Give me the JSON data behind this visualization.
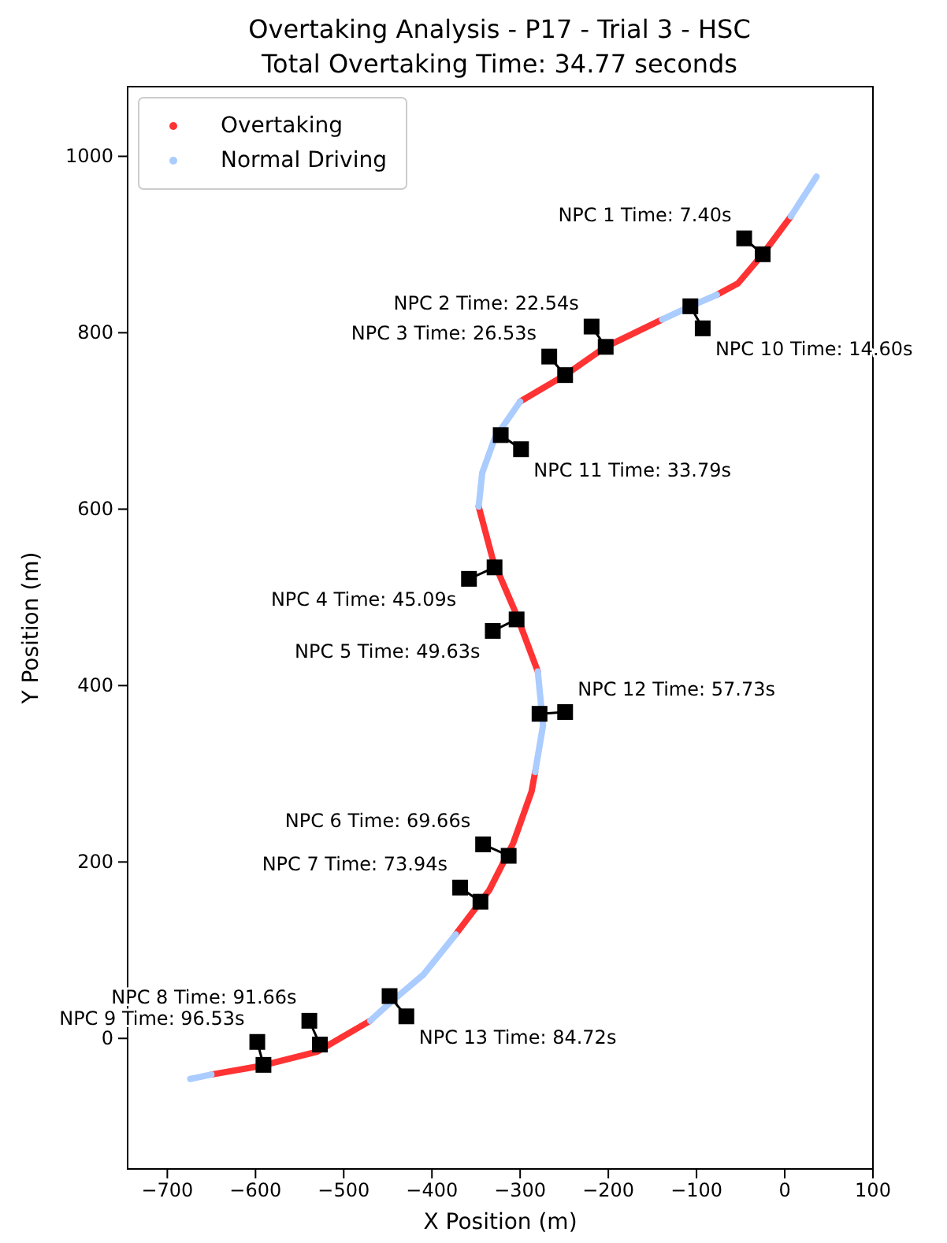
{
  "chart_data": {
    "type": "line",
    "title": "Overtaking Analysis - P17 - Trial 3 - HSC",
    "subtitle": "Total Overtaking Time: 34.77 seconds",
    "xlabel": "X Position (m)",
    "ylabel": "Y Position (m)",
    "xlim": [
      -745,
      100
    ],
    "ylim": [
      -148,
      1079
    ],
    "xticks": [
      -700,
      -600,
      -500,
      -400,
      -300,
      -200,
      -100,
      0,
      100
    ],
    "yticks": [
      0,
      200,
      400,
      600,
      800,
      1000
    ],
    "grid": false,
    "legend": "top left",
    "series": [
      {
        "name": "Overtaking",
        "color": "#ff3333",
        "marker": "none",
        "x": [
          -650,
          -593,
          -530,
          -470,
          -420,
          -373,
          -335,
          -308,
          -287,
          -283,
          -281,
          -280,
          -304,
          -331,
          -347,
          -320,
          -300,
          -249,
          -203,
          -139,
          -110,
          -77,
          -53,
          -25,
          7
        ],
        "values": [
          -41,
          -31,
          -15,
          20,
          null,
          118,
          168,
          221,
          280,
          302,
          null,
          416,
          480,
          543,
          603,
          null,
          722,
          752,
          784,
          815,
          null,
          843,
          856,
          889,
          932
        ]
      },
      {
        "name": "Normal Driving",
        "color": "#aaccff",
        "marker": "none",
        "x": [
          -674,
          -650,
          -560,
          -470,
          -448,
          -410,
          -373,
          -330,
          -283,
          -274,
          -280,
          -310,
          -347,
          -343,
          -329,
          -300,
          -220,
          -139,
          -107,
          -77,
          -40,
          7,
          36
        ],
        "values": [
          -46,
          -41,
          null,
          20,
          40,
          72,
          118,
          null,
          302,
          355,
          416,
          null,
          603,
          641,
          680,
          722,
          null,
          815,
          830,
          843,
          null,
          932,
          977
        ]
      },
      {
        "color": "#000000",
        "marker": "square",
        "x": [
          -25,
          -46
        ],
        "values": [
          889,
          907
        ]
      },
      {
        "color": "#000000",
        "marker": "square",
        "x": [
          -203,
          -219
        ],
        "values": [
          784,
          807
        ]
      },
      {
        "color": "#000000",
        "marker": "square",
        "x": [
          -249,
          -267
        ],
        "values": [
          752,
          773
        ]
      },
      {
        "color": "#000000",
        "marker": "square",
        "x": [
          -329,
          -358
        ],
        "values": [
          534,
          521
        ]
      },
      {
        "color": "#000000",
        "marker": "square",
        "x": [
          -304,
          -331
        ],
        "values": [
          475,
          462
        ]
      },
      {
        "color": "#000000",
        "marker": "square",
        "x": [
          -313,
          -342
        ],
        "values": [
          207,
          220
        ]
      },
      {
        "color": "#000000",
        "marker": "square",
        "x": [
          -345,
          -368
        ],
        "values": [
          155,
          171
        ]
      },
      {
        "color": "#000000",
        "marker": "square",
        "x": [
          -527,
          -539
        ],
        "values": [
          -7,
          20
        ]
      },
      {
        "color": "#000000",
        "marker": "square",
        "x": [
          -591,
          -598
        ],
        "values": [
          -30,
          -4
        ]
      },
      {
        "color": "#000000",
        "marker": "square",
        "x": [
          -107,
          -93
        ],
        "values": [
          830,
          805
        ]
      },
      {
        "color": "#000000",
        "marker": "square",
        "x": [
          -322,
          -299
        ],
        "values": [
          684,
          668
        ]
      },
      {
        "color": "#000000",
        "marker": "square",
        "x": [
          -278,
          -249
        ],
        "values": [
          368,
          370
        ]
      },
      {
        "color": "#000000",
        "marker": "square",
        "x": [
          -448,
          -429
        ],
        "values": [
          48,
          25
        ]
      }
    ],
    "annotations": [
      {
        "text": "NPC 1 Time: 7.40s",
        "x": -46,
        "y": 907
      },
      {
        "text": "NPC 2 Time: 22.54s",
        "x": -219,
        "y": 807
      },
      {
        "text": "NPC 3 Time: 26.53s",
        "x": -267,
        "y": 773
      },
      {
        "text": "NPC 4 Time: 45.09s",
        "x": -358,
        "y": 521
      },
      {
        "text": "NPC 5 Time: 49.63s",
        "x": -331,
        "y": 462
      },
      {
        "text": "NPC 6 Time: 69.66s",
        "x": -342,
        "y": 220
      },
      {
        "text": "NPC 7 Time: 73.94s",
        "x": -368,
        "y": 171
      },
      {
        "text": "NPC 8 Time: 91.66s",
        "x": -539,
        "y": 20
      },
      {
        "text": "NPC 9 Time: 96.53s",
        "x": -598,
        "y": -4
      },
      {
        "text": "NPC 10 Time: 14.60s",
        "x": -93,
        "y": 805
      },
      {
        "text": "NPC 11 Time: 33.79s",
        "x": -299,
        "y": 668
      },
      {
        "text": "NPC 12 Time: 57.73s",
        "x": -249,
        "y": 370
      },
      {
        "text": "NPC 13 Time: 84.72s",
        "x": -429,
        "y": 25
      }
    ]
  }
}
